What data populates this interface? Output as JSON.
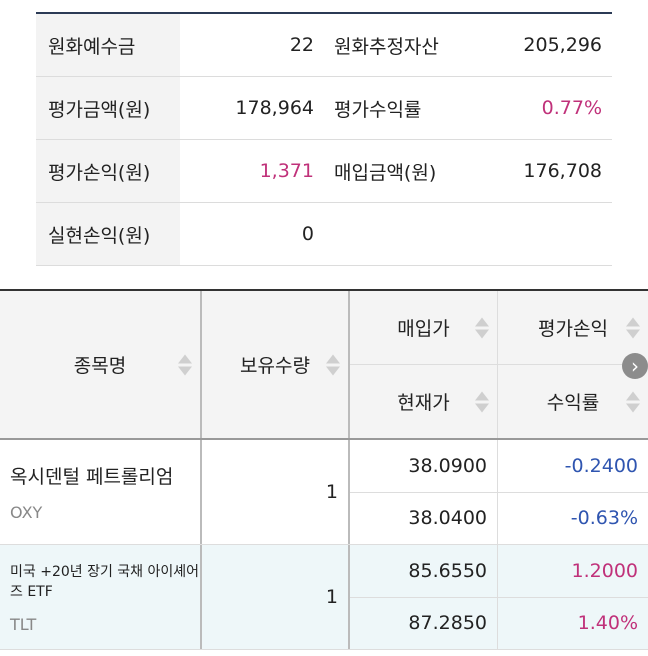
{
  "summary": {
    "rows": [
      {
        "l1": "원화예수금",
        "v1": "22",
        "l2": "원화추정자산",
        "v2": "205,296"
      },
      {
        "l1": "평가금액(원)",
        "v1": "178,964",
        "l2": "평가수익률",
        "v2": "0.77%"
      },
      {
        "l1": "평가손익(원)",
        "v1": "1,371",
        "l2": "매입금액(원)",
        "v2": "176,708"
      },
      {
        "l1": "실현손익(원)",
        "v1": "0",
        "l2": "",
        "v2": ""
      }
    ]
  },
  "table": {
    "headers": {
      "name": "종목명",
      "qty": "보유수량",
      "buy_price": "매입가",
      "cur_price": "현재가",
      "pl": "평가손익",
      "ret": "수익률"
    },
    "rows": [
      {
        "name": "옥시덴털 페트롤리엄",
        "code": "OXY",
        "qty": "1",
        "buy": "38.0900",
        "cur": "38.0400",
        "pl": "-0.2400",
        "ret": "-0.63%"
      },
      {
        "name": "미국 +20년 장기 국채 아이셰어즈 ETF",
        "code": "TLT",
        "qty": "1",
        "buy": "85.6550",
        "cur": "87.2850",
        "pl": "1.2000",
        "ret": "1.40%"
      }
    ]
  },
  "colors": {
    "positive": "#c0317a",
    "negative": "#2f55b0",
    "header_line": "#2b3a55"
  },
  "icons": {
    "sort": "sort-arrows-icon",
    "scroll": "chevron-right-icon"
  }
}
